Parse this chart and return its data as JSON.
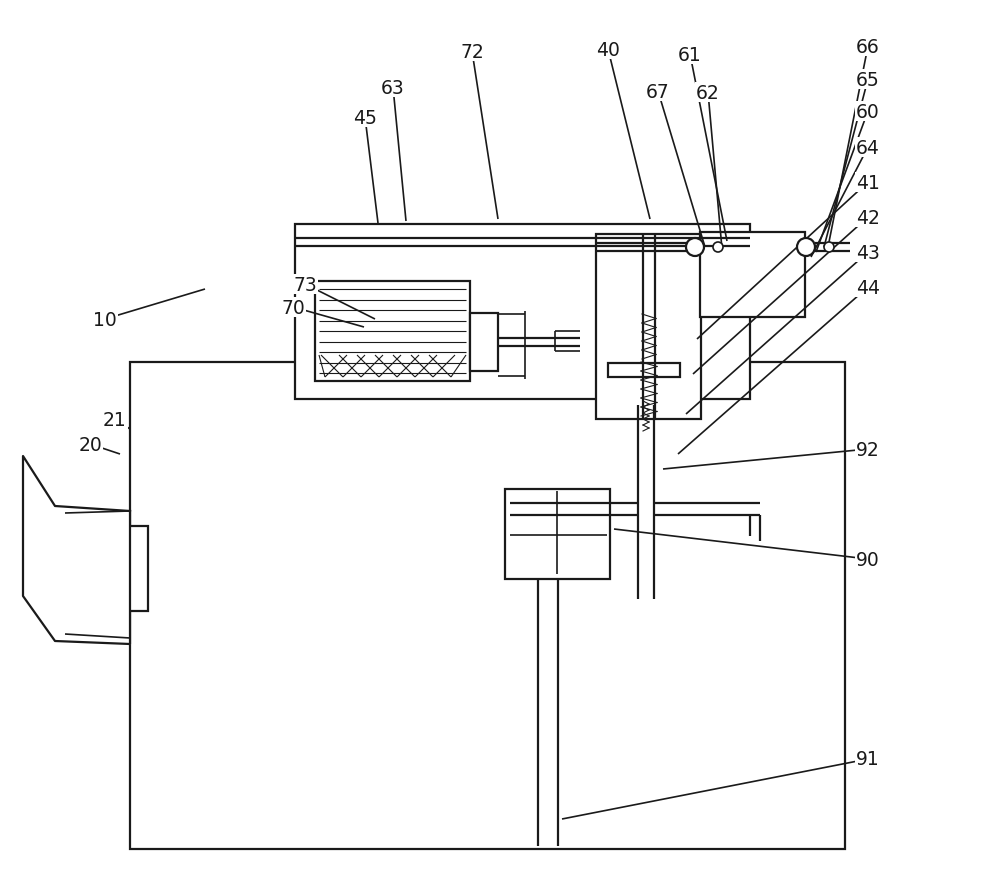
{
  "bg": "#ffffff",
  "lc": "#1a1a1a",
  "lw": 1.6,
  "lw2": 1.2,
  "lw3": 0.8,
  "figw": 10.0,
  "figh": 8.87,
  "dpi": 100,
  "fs": 13.5
}
